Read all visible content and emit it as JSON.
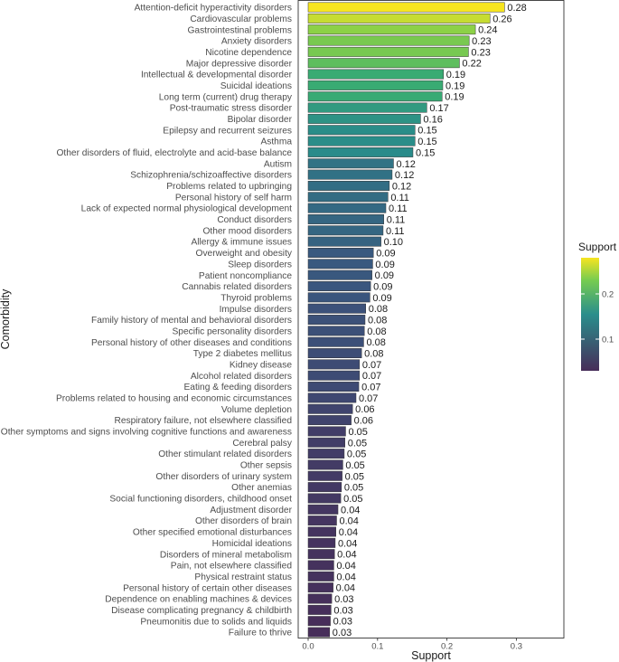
{
  "chart_data": {
    "type": "bar",
    "orientation": "horizontal",
    "title": "",
    "xlabel": "Support",
    "ylabel": "Comorbidity",
    "xlim": [
      0,
      0.35
    ],
    "x_ticks": [
      "0.0",
      "0.1",
      "0.2",
      "0.3"
    ],
    "x_tick_values": [
      0,
      0.1,
      0.2,
      0.3
    ],
    "grid": false,
    "legend": {
      "title": "Support",
      "placement": "right",
      "type": "colorbar",
      "ticks": [
        "0.2",
        "0.1"
      ],
      "tick_values": [
        0.2,
        0.1
      ],
      "range": [
        0.03,
        0.28
      ]
    },
    "colors": {
      "low": "#472d59",
      "mid": "#2a8e8c",
      "high": "#f7e520",
      "bar_outline": "#333333",
      "panel_border": "#333333"
    },
    "categories": [
      "Attention-deficit hyperactivity disorders",
      "Cardiovascular problems",
      "Gastrointestinal problems",
      "Anxiety disorders",
      "Nicotine dependence",
      "Major depressive disorder",
      "Intellectual & developmental disorder",
      "Suicidal ideations",
      "Long term (current) drug therapy",
      "Post-traumatic stress disorder",
      "Bipolar disorder",
      "Epilepsy and recurrent seizures",
      "Asthma",
      "Other disorders of fluid, electrolyte and acid-base balance",
      "Autism",
      "Schizophrenia/schizoaffective disorders",
      "Problems related to upbringing",
      "Personal history of self harm",
      "Lack of expected normal physiological development",
      "Conduct disorders",
      "Other mood disorders",
      "Allergy & immune issues",
      "Overweight and obesity",
      "Sleep disorders",
      "Patient noncompliance",
      "Cannabis related disorders",
      "Thyroid problems",
      "Impulse disorders",
      "Family history of mental and behavioral disorders",
      "Specific personality disorders",
      "Personal history of other diseases and conditions",
      "Type 2 diabetes mellitus",
      "Kidney disease",
      "Alcohol related disorders",
      "Eating & feeding disorders",
      "Problems related to housing and economic circumstances",
      "Volume depletion",
      "Respiratory failure, not elsewhere classified",
      "Other symptoms and signs involving cognitive functions and awareness",
      "Cerebral palsy",
      "Other stimulant related disorders",
      "Other sepsis",
      "Other disorders of urinary system",
      "Other anemias",
      "Social functioning disorders, childhood onset",
      "Adjustment disorder",
      "Other disorders of brain",
      "Other specified emotional disturbances",
      "Homicidal ideations",
      "Disorders of mineral metabolism",
      "Pain, not elsewhere classified",
      "Physical restraint status",
      "Personal history of certain other diseases",
      "Dependence on enabling machines & devices",
      "Disease complicating pregnancy & childbirth",
      "Pneumonitis due to solids and liquids",
      "Failure to thrive"
    ],
    "values": [
      0.283,
      0.262,
      0.241,
      0.232,
      0.231,
      0.218,
      0.195,
      0.194,
      0.193,
      0.171,
      0.162,
      0.154,
      0.154,
      0.151,
      0.123,
      0.121,
      0.117,
      0.115,
      0.112,
      0.109,
      0.108,
      0.105,
      0.094,
      0.093,
      0.092,
      0.09,
      0.089,
      0.083,
      0.082,
      0.081,
      0.08,
      0.077,
      0.074,
      0.074,
      0.073,
      0.069,
      0.064,
      0.062,
      0.054,
      0.053,
      0.052,
      0.05,
      0.049,
      0.048,
      0.047,
      0.043,
      0.041,
      0.04,
      0.039,
      0.038,
      0.037,
      0.037,
      0.036,
      0.034,
      0.033,
      0.032,
      0.031
    ],
    "value_labels": [
      "0.28",
      "0.26",
      "0.24",
      "0.23",
      "0.23",
      "0.22",
      "0.19",
      "0.19",
      "0.19",
      "0.17",
      "0.16",
      "0.15",
      "0.15",
      "0.15",
      "0.12",
      "0.12",
      "0.12",
      "0.11",
      "0.11",
      "0.11",
      "0.11",
      "0.10",
      "0.09",
      "0.09",
      "0.09",
      "0.09",
      "0.09",
      "0.08",
      "0.08",
      "0.08",
      "0.08",
      "0.08",
      "0.07",
      "0.07",
      "0.07",
      "0.07",
      "0.06",
      "0.06",
      "0.05",
      "0.05",
      "0.05",
      "0.05",
      "0.05",
      "0.05",
      "0.05",
      "0.04",
      "0.04",
      "0.04",
      "0.04",
      "0.04",
      "0.04",
      "0.04",
      "0.04",
      "0.03",
      "0.03",
      "0.03",
      "0.03"
    ]
  }
}
